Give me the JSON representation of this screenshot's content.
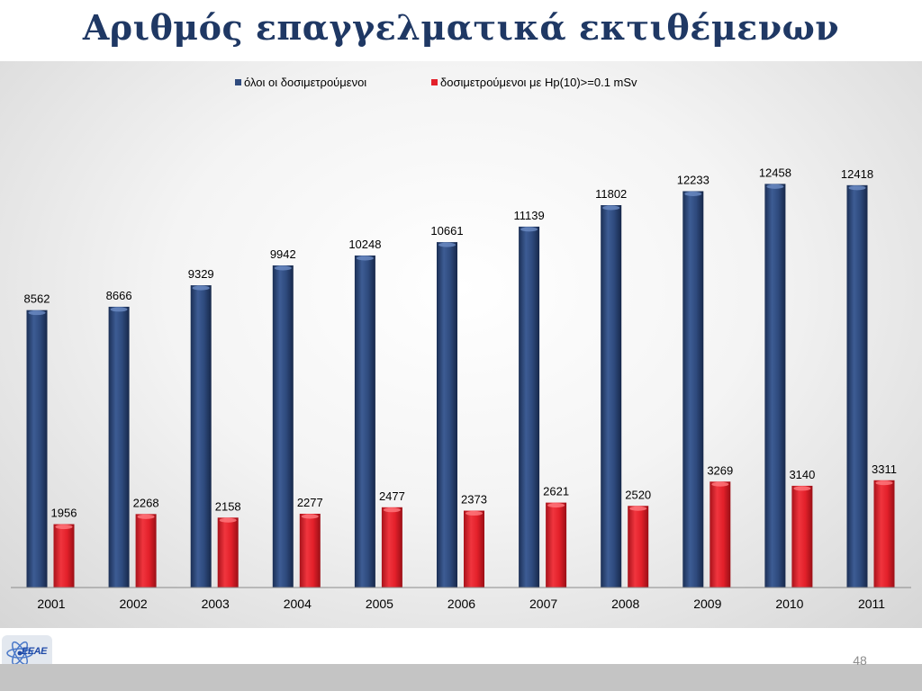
{
  "slide": {
    "title": "Αριθμός επαγγελματικά εκτιθέμενων",
    "page_number": "48",
    "logo_text": "ΕΕΑΕ"
  },
  "colors": {
    "series_all": "#2e4a7d",
    "series_dose": "#e3202a",
    "title": "#1f3864"
  },
  "chart_data": {
    "type": "bar",
    "title": "",
    "xlabel": "",
    "ylabel": "",
    "legend_position": "top-center",
    "grid": false,
    "ylim": [
      0,
      14000
    ],
    "categories": [
      "2001",
      "2002",
      "2003",
      "2004",
      "2005",
      "2006",
      "2007",
      "2008",
      "2009",
      "2010",
      "2011"
    ],
    "series": [
      {
        "name": "όλοι οι δοσιμετρούμενοι",
        "color": "#2e4a7d",
        "values": [
          8562,
          8666,
          9329,
          9942,
          10248,
          10661,
          11139,
          11802,
          12233,
          12458,
          12418
        ]
      },
      {
        "name": "δοσιμετρούμενοι με Hp(10)>=0.1 mSv",
        "color": "#e3202a",
        "values": [
          1956,
          2268,
          2158,
          2277,
          2477,
          2373,
          2621,
          2520,
          3269,
          3140,
          3311
        ]
      }
    ]
  }
}
